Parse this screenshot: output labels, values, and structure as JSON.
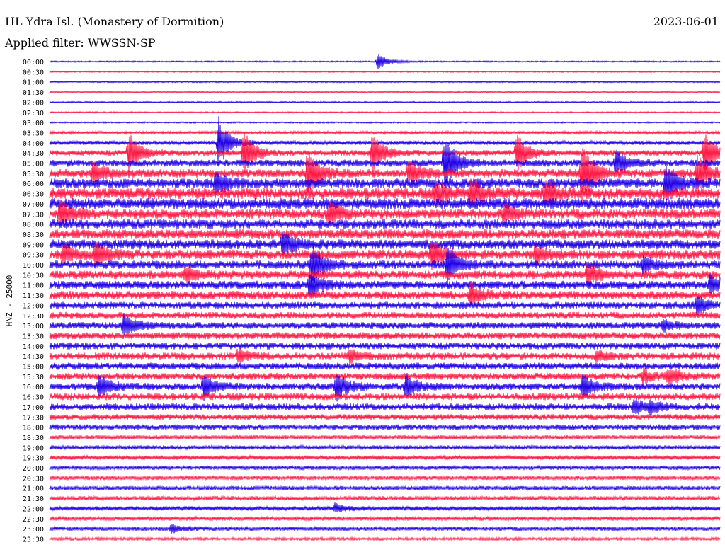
{
  "header": {
    "title": "HL Ydra Isl. (Monastery of Dormition)",
    "date": "2023-06-01",
    "filter": "Applied filter: WWSSN-SP"
  },
  "colors": {
    "trace_a": "#1f00e6",
    "trace_b": "#ff1744",
    "text": "#000000"
  },
  "chart_data": {
    "type": "line",
    "title": "HL Ydra Isl. (Monastery of Dormition)",
    "ylabel": "HNZ - 25000",
    "row_labels": [
      "00:00",
      "00:30",
      "01:00",
      "01:30",
      "02:00",
      "02:30",
      "03:00",
      "03:30",
      "04:00",
      "04:30",
      "05:00",
      "05:30",
      "06:00",
      "06:30",
      "07:00",
      "07:30",
      "08:00",
      "08:30",
      "09:00",
      "09:30",
      "10:00",
      "10:30",
      "11:00",
      "11:30",
      "12:00",
      "12:30",
      "13:00",
      "13:30",
      "14:00",
      "14:30",
      "15:00",
      "15:30",
      "16:00",
      "16:30",
      "17:00",
      "17:30",
      "18:00",
      "18:30",
      "19:00",
      "19:30",
      "20:00",
      "20:30",
      "21:00",
      "21:30",
      "22:00",
      "22:30",
      "23:00",
      "23:30"
    ],
    "trace_colors": [
      "#1f00e6",
      "#ff1744"
    ],
    "noise_level": [
      1,
      1,
      1,
      1,
      1,
      1,
      1,
      2,
      3,
      4,
      5,
      6,
      7,
      8,
      8,
      7,
      7,
      7,
      7,
      7,
      6,
      6,
      6,
      6,
      5,
      5,
      5,
      5,
      5,
      5,
      5,
      5,
      5,
      5,
      5,
      4,
      4,
      3,
      3,
      3,
      3,
      3,
      3,
      3,
      3,
      3,
      3,
      2
    ],
    "events": [
      {
        "row": 0,
        "x": 534,
        "amp": 11
      },
      {
        "row": 8,
        "x": 309,
        "amp": 35
      },
      {
        "row": 9,
        "x": 182,
        "amp": 30
      },
      {
        "row": 9,
        "x": 344,
        "amp": 32
      },
      {
        "row": 9,
        "x": 526,
        "amp": 28
      },
      {
        "row": 9,
        "x": 730,
        "amp": 30
      },
      {
        "row": 9,
        "x": 995,
        "amp": 32
      },
      {
        "row": 10,
        "x": 628,
        "amp": 40
      },
      {
        "row": 10,
        "x": 870,
        "amp": 18
      },
      {
        "row": 11,
        "x": 132,
        "amp": 16
      },
      {
        "row": 11,
        "x": 435,
        "amp": 38
      },
      {
        "row": 11,
        "x": 578,
        "amp": 18
      },
      {
        "row": 11,
        "x": 822,
        "amp": 48
      },
      {
        "row": 11,
        "x": 985,
        "amp": 26
      },
      {
        "row": 12,
        "x": 305,
        "amp": 15
      },
      {
        "row": 12,
        "x": 940,
        "amp": 28
      },
      {
        "row": 13,
        "x": 615,
        "amp": 18
      },
      {
        "row": 13,
        "x": 665,
        "amp": 22
      },
      {
        "row": 13,
        "x": 770,
        "amp": 20
      },
      {
        "row": 15,
        "x": 85,
        "amp": 18
      },
      {
        "row": 15,
        "x": 465,
        "amp": 18
      },
      {
        "row": 15,
        "x": 712,
        "amp": 14
      },
      {
        "row": 18,
        "x": 400,
        "amp": 18
      },
      {
        "row": 19,
        "x": 90,
        "amp": 14
      },
      {
        "row": 19,
        "x": 135,
        "amp": 16
      },
      {
        "row": 19,
        "x": 610,
        "amp": 20
      },
      {
        "row": 19,
        "x": 756,
        "amp": 12
      },
      {
        "row": 20,
        "x": 440,
        "amp": 28
      },
      {
        "row": 20,
        "x": 632,
        "amp": 26
      },
      {
        "row": 20,
        "x": 908,
        "amp": 12
      },
      {
        "row": 21,
        "x": 262,
        "amp": 10
      },
      {
        "row": 21,
        "x": 830,
        "amp": 16
      },
      {
        "row": 22,
        "x": 438,
        "amp": 20
      },
      {
        "row": 22,
        "x": 1003,
        "amp": 14
      },
      {
        "row": 23,
        "x": 665,
        "amp": 18
      },
      {
        "row": 24,
        "x": 985,
        "amp": 14
      },
      {
        "row": 26,
        "x": 175,
        "amp": 18
      },
      {
        "row": 26,
        "x": 936,
        "amp": 8
      },
      {
        "row": 29,
        "x": 336,
        "amp": 10
      },
      {
        "row": 29,
        "x": 494,
        "amp": 9
      },
      {
        "row": 29,
        "x": 843,
        "amp": 8
      },
      {
        "row": 31,
        "x": 908,
        "amp": 10
      },
      {
        "row": 31,
        "x": 944,
        "amp": 12
      },
      {
        "row": 32,
        "x": 140,
        "amp": 18
      },
      {
        "row": 32,
        "x": 288,
        "amp": 16
      },
      {
        "row": 32,
        "x": 475,
        "amp": 22
      },
      {
        "row": 32,
        "x": 573,
        "amp": 16
      },
      {
        "row": 32,
        "x": 823,
        "amp": 18
      },
      {
        "row": 34,
        "x": 895,
        "amp": 10
      },
      {
        "row": 34,
        "x": 918,
        "amp": 8
      },
      {
        "row": 44,
        "x": 473,
        "amp": 6
      },
      {
        "row": 46,
        "x": 242,
        "amp": 6
      }
    ]
  }
}
